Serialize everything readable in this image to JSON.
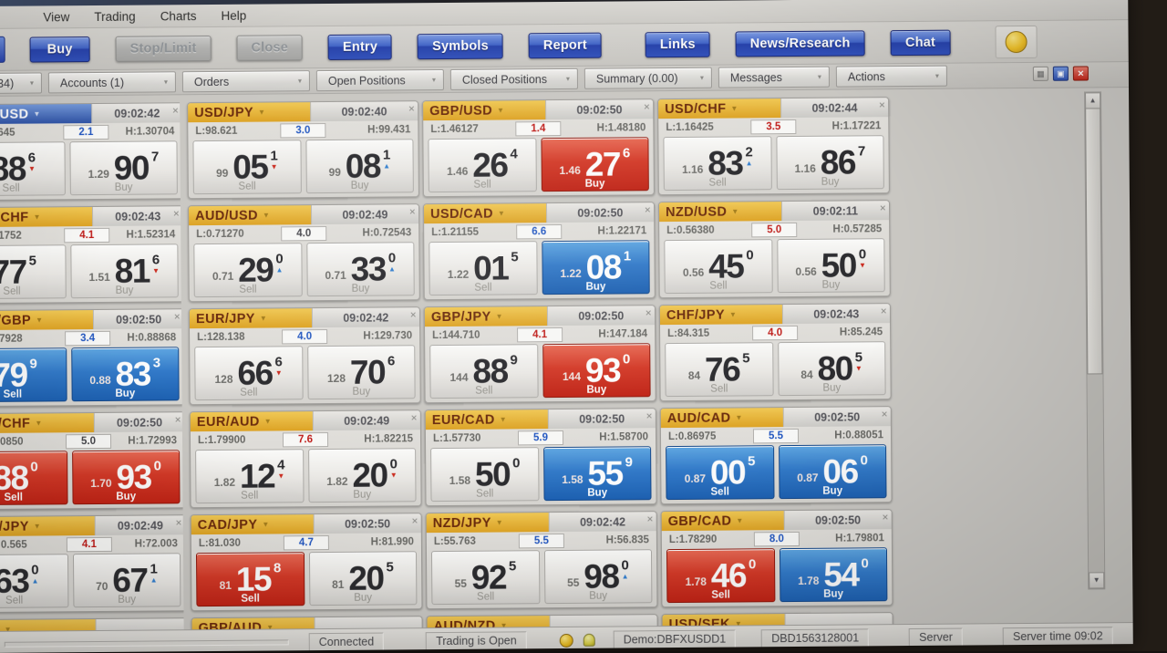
{
  "menu": {
    "items": [
      "View",
      "Trading",
      "Charts",
      "Help"
    ]
  },
  "toolbar": {
    "buttons": [
      {
        "label": "Buy",
        "style": "primary"
      },
      {
        "label": "Stop/Limit",
        "style": "disabled"
      },
      {
        "label": "Close",
        "style": "disabled"
      },
      {
        "label": "Entry",
        "style": "primary"
      },
      {
        "label": "Symbols",
        "style": "primary"
      },
      {
        "label": "Report",
        "style": "primary"
      },
      {
        "label": "Links",
        "style": "primary"
      },
      {
        "label": "News/Research",
        "style": "primary"
      },
      {
        "label": "Chat",
        "style": "primary"
      }
    ]
  },
  "tabs": [
    {
      "label": "(34)"
    },
    {
      "label": "Accounts (1)"
    },
    {
      "label": "Orders"
    },
    {
      "label": "Open Positions"
    },
    {
      "label": "Closed Positions"
    },
    {
      "label": "Summary (0.00)"
    },
    {
      "label": "Messages"
    },
    {
      "label": "Actions"
    }
  ],
  "labels": {
    "sell": "Sell",
    "buy": "Buy"
  },
  "colors": {
    "accent_blue": "#2240b4",
    "highlight_red": "#e03420",
    "highlight_blue": "#2a7ad2",
    "header_yellow": "#eeb428",
    "spread_up": "#1a55cc",
    "spread_down": "#cc1612"
  },
  "tiles": [
    {
      "col": 0,
      "pair": "/USD",
      "header": "blue",
      "time": "09:02:42",
      "low": "645",
      "spread": "2.1",
      "spread_color": "blue",
      "high": "H:1.30704",
      "sell": {
        "prefix": "",
        "big": "88",
        "sup": "6",
        "arrow": "down",
        "hl": ""
      },
      "buy": {
        "prefix": "1.29",
        "big": "90",
        "sup": "7",
        "arrow": "",
        "hl": ""
      }
    },
    {
      "col": 0,
      "pair": "/CHF",
      "header": "yellow",
      "time": "09:02:43",
      "low": "1752",
      "spread": "4.1",
      "spread_color": "red",
      "high": "H:1.52314",
      "sell": {
        "prefix": "",
        "big": "77",
        "sup": "5",
        "arrow": "",
        "hl": ""
      },
      "buy": {
        "prefix": "1.51",
        "big": "81",
        "sup": "6",
        "arrow": "down",
        "hl": ""
      }
    },
    {
      "col": 0,
      "pair": "/GBP",
      "header": "yellow",
      "time": "09:02:50",
      "low": "7928",
      "spread": "3.4",
      "spread_color": "blue",
      "high": "H:0.88868",
      "sell": {
        "prefix": "",
        "big": "79",
        "sup": "9",
        "arrow": "",
        "hl": "blue"
      },
      "buy": {
        "prefix": "0.88",
        "big": "83",
        "sup": "3",
        "arrow": "",
        "hl": "blue"
      }
    },
    {
      "col": 0,
      "pair": "/CHF",
      "header": "yellow",
      "time": "09:02:50",
      "low": "0850",
      "spread": "5.0",
      "spread_color": "dark",
      "high": "H:1.72993",
      "sell": {
        "prefix": "",
        "big": "88",
        "sup": "0",
        "arrow": "",
        "hl": "red"
      },
      "buy": {
        "prefix": "1.70",
        "big": "93",
        "sup": "0",
        "arrow": "",
        "hl": "red"
      }
    },
    {
      "col": 0,
      "pair": "/JPY",
      "header": "yellow",
      "time": "09:02:49",
      "low": "0.565",
      "spread": "4.1",
      "spread_color": "red",
      "high": "H:72.003",
      "sell": {
        "prefix": "",
        "big": "63",
        "sup": "0",
        "arrow": "up",
        "hl": ""
      },
      "buy": {
        "prefix": "70",
        "big": "67",
        "sup": "1",
        "arrow": "up",
        "hl": ""
      }
    },
    {
      "col": 1,
      "pair": "USD/JPY",
      "header": "yellow",
      "time": "09:02:40",
      "low": "L:98.621",
      "spread": "3.0",
      "spread_color": "blue",
      "high": "H:99.431",
      "sell": {
        "prefix": "99",
        "big": "05",
        "sup": "1",
        "arrow": "down",
        "hl": ""
      },
      "buy": {
        "prefix": "99",
        "big": "08",
        "sup": "1",
        "arrow": "up",
        "hl": ""
      }
    },
    {
      "col": 1,
      "pair": "AUD/USD",
      "header": "yellow",
      "time": "09:02:49",
      "low": "L:0.71270",
      "spread": "4.0",
      "spread_color": "dark",
      "high": "H:0.72543",
      "sell": {
        "prefix": "0.71",
        "big": "29",
        "sup": "0",
        "arrow": "up",
        "hl": ""
      },
      "buy": {
        "prefix": "0.71",
        "big": "33",
        "sup": "0",
        "arrow": "up",
        "hl": ""
      }
    },
    {
      "col": 1,
      "pair": "EUR/JPY",
      "header": "yellow",
      "time": "09:02:42",
      "low": "L:128.138",
      "spread": "4.0",
      "spread_color": "blue",
      "high": "H:129.730",
      "sell": {
        "prefix": "128",
        "big": "66",
        "sup": "6",
        "arrow": "down",
        "hl": ""
      },
      "buy": {
        "prefix": "128",
        "big": "70",
        "sup": "6",
        "arrow": "",
        "hl": ""
      }
    },
    {
      "col": 1,
      "pair": "EUR/AUD",
      "header": "yellow",
      "time": "09:02:49",
      "low": "L:1.79900",
      "spread": "7.6",
      "spread_color": "red",
      "high": "H:1.82215",
      "sell": {
        "prefix": "1.82",
        "big": "12",
        "sup": "4",
        "arrow": "down",
        "hl": ""
      },
      "buy": {
        "prefix": "1.82",
        "big": "20",
        "sup": "0",
        "arrow": "down",
        "hl": ""
      }
    },
    {
      "col": 1,
      "pair": "CAD/JPY",
      "header": "yellow",
      "time": "09:02:50",
      "low": "L:81.030",
      "spread": "4.7",
      "spread_color": "blue",
      "high": "H:81.990",
      "sell": {
        "prefix": "81",
        "big": "15",
        "sup": "8",
        "arrow": "",
        "hl": "red"
      },
      "buy": {
        "prefix": "81",
        "big": "20",
        "sup": "5",
        "arrow": "",
        "hl": ""
      }
    },
    {
      "col": 2,
      "pair": "GBP/USD",
      "header": "yellow",
      "time": "09:02:50",
      "low": "L:1.46127",
      "spread": "1.4",
      "spread_color": "red",
      "high": "H:1.48180",
      "sell": {
        "prefix": "1.46",
        "big": "26",
        "sup": "4",
        "arrow": "",
        "hl": ""
      },
      "buy": {
        "prefix": "1.46",
        "big": "27",
        "sup": "6",
        "arrow": "",
        "hl": "red"
      }
    },
    {
      "col": 2,
      "pair": "USD/CAD",
      "header": "yellow",
      "time": "09:02:50",
      "low": "L:1.21155",
      "spread": "6.6",
      "spread_color": "blue",
      "high": "H:1.22171",
      "sell": {
        "prefix": "1.22",
        "big": "01",
        "sup": "5",
        "arrow": "",
        "hl": ""
      },
      "buy": {
        "prefix": "1.22",
        "big": "08",
        "sup": "1",
        "arrow": "",
        "hl": "blue"
      }
    },
    {
      "col": 2,
      "pair": "GBP/JPY",
      "header": "yellow",
      "time": "09:02:50",
      "low": "L:144.710",
      "spread": "4.1",
      "spread_color": "red",
      "high": "H:147.184",
      "sell": {
        "prefix": "144",
        "big": "88",
        "sup": "9",
        "arrow": "",
        "hl": ""
      },
      "buy": {
        "prefix": "144",
        "big": "93",
        "sup": "0",
        "arrow": "",
        "hl": "red"
      }
    },
    {
      "col": 2,
      "pair": "EUR/CAD",
      "header": "yellow",
      "time": "09:02:50",
      "low": "L:1.57730",
      "spread": "5.9",
      "spread_color": "blue",
      "high": "H:1.58700",
      "sell": {
        "prefix": "1.58",
        "big": "50",
        "sup": "0",
        "arrow": "",
        "hl": ""
      },
      "buy": {
        "prefix": "1.58",
        "big": "55",
        "sup": "9",
        "arrow": "",
        "hl": "blue"
      }
    },
    {
      "col": 2,
      "pair": "NZD/JPY",
      "header": "yellow",
      "time": "09:02:42",
      "low": "L:55.763",
      "spread": "5.5",
      "spread_color": "blue",
      "high": "H:56.835",
      "sell": {
        "prefix": "55",
        "big": "92",
        "sup": "5",
        "arrow": "",
        "hl": ""
      },
      "buy": {
        "prefix": "55",
        "big": "98",
        "sup": "0",
        "arrow": "up",
        "hl": ""
      }
    },
    {
      "col": 3,
      "pair": "USD/CHF",
      "header": "yellow",
      "time": "09:02:44",
      "low": "L:1.16425",
      "spread": "3.5",
      "spread_color": "red",
      "high": "H:1.17221",
      "sell": {
        "prefix": "1.16",
        "big": "83",
        "sup": "2",
        "arrow": "up",
        "hl": ""
      },
      "buy": {
        "prefix": "1.16",
        "big": "86",
        "sup": "7",
        "arrow": "",
        "hl": ""
      }
    },
    {
      "col": 3,
      "pair": "NZD/USD",
      "header": "yellow",
      "time": "09:02:11",
      "low": "L:0.56380",
      "spread": "5.0",
      "spread_color": "red",
      "high": "H:0.57285",
      "sell": {
        "prefix": "0.56",
        "big": "45",
        "sup": "0",
        "arrow": "",
        "hl": ""
      },
      "buy": {
        "prefix": "0.56",
        "big": "50",
        "sup": "0",
        "arrow": "down",
        "hl": ""
      }
    },
    {
      "col": 3,
      "pair": "CHF/JPY",
      "header": "yellow",
      "time": "09:02:43",
      "low": "L:84.315",
      "spread": "4.0",
      "spread_color": "red",
      "high": "H:85.245",
      "sell": {
        "prefix": "84",
        "big": "76",
        "sup": "5",
        "arrow": "",
        "hl": ""
      },
      "buy": {
        "prefix": "84",
        "big": "80",
        "sup": "5",
        "arrow": "down",
        "hl": ""
      }
    },
    {
      "col": 3,
      "pair": "AUD/CAD",
      "header": "yellow",
      "time": "09:02:50",
      "low": "L:0.86975",
      "spread": "5.5",
      "spread_color": "blue",
      "high": "H:0.88051",
      "sell": {
        "prefix": "0.87",
        "big": "00",
        "sup": "5",
        "arrow": "",
        "hl": "blue"
      },
      "buy": {
        "prefix": "0.87",
        "big": "06",
        "sup": "0",
        "arrow": "",
        "hl": "blue"
      }
    },
    {
      "col": 3,
      "pair": "GBP/CAD",
      "header": "yellow",
      "time": "09:02:50",
      "low": "L:1.78290",
      "spread": "8.0",
      "spread_color": "blue",
      "high": "H:1.79801",
      "sell": {
        "prefix": "1.78",
        "big": "46",
        "sup": "0",
        "arrow": "",
        "hl": "red"
      },
      "buy": {
        "prefix": "1.78",
        "big": "54",
        "sup": "0",
        "arrow": "",
        "hl": "blue"
      }
    }
  ],
  "partial_row": [
    {
      "col": 0,
      "pair": ""
    },
    {
      "col": 1,
      "pair": "GBP/AUD"
    },
    {
      "col": 2,
      "pair": "AUD/NZD"
    },
    {
      "col": 3,
      "pair": "USD/SEK"
    }
  ],
  "statusbar": {
    "connected": "Connected",
    "trading": "Trading is Open",
    "account": "Demo:DBFXUSDD1",
    "account_id": "DBD1563128001",
    "server": "Server",
    "server_time": "Server time 09:02"
  }
}
